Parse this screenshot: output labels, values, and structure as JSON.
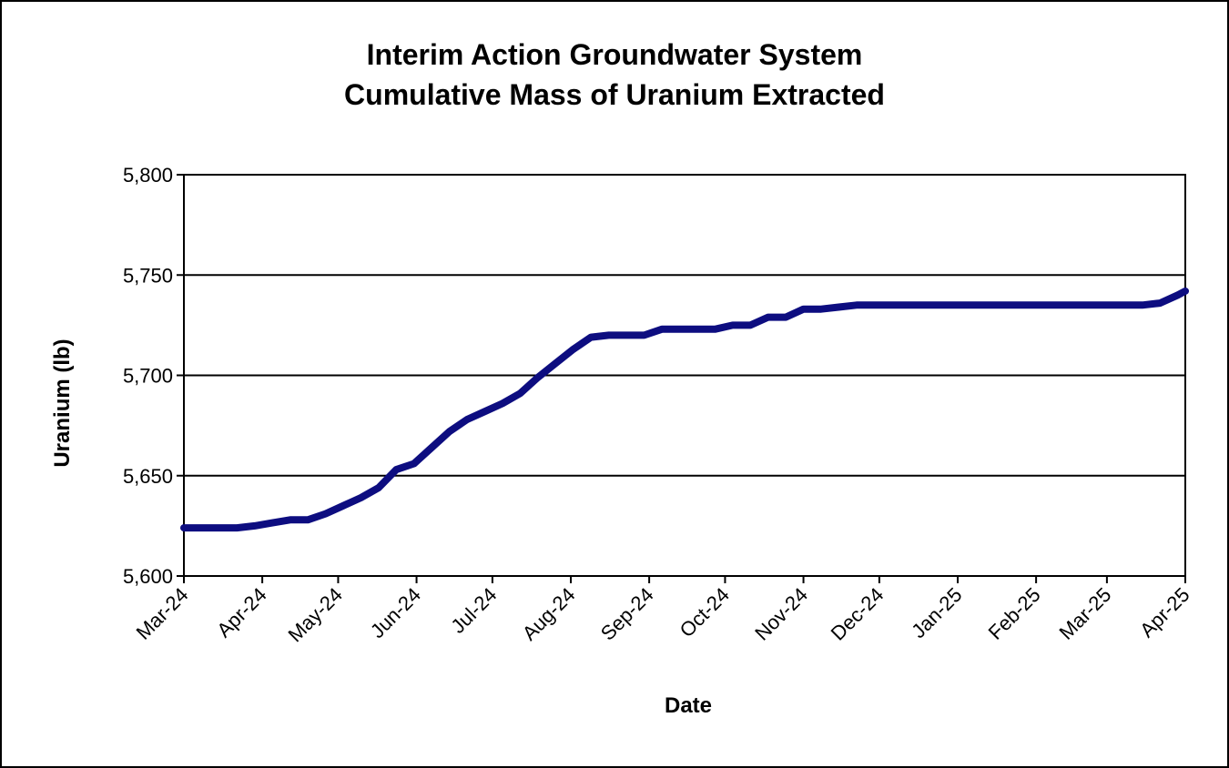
{
  "colors": {
    "line": "#0d0d80",
    "grid": "#000000",
    "background": "#ffffff"
  },
  "chart_data": {
    "type": "line",
    "title_line1": "Interim  Action Groundwater System",
    "title_line2": "Cumulative Mass of Uranium Extracted",
    "xlabel": "Date",
    "ylabel": "Uranium (lb)",
    "ylim": [
      5600,
      5800
    ],
    "yticks": [
      5600,
      5650,
      5700,
      5750,
      5800
    ],
    "ytick_labels": [
      "5,600",
      "5,650",
      "5,700",
      "5,750",
      "5,800"
    ],
    "xlim": [
      "2024-03-01",
      "2025-04-01"
    ],
    "xticks": [
      "2024-03-01",
      "2024-04-01",
      "2024-05-01",
      "2024-06-01",
      "2024-07-01",
      "2024-08-01",
      "2024-09-01",
      "2024-10-01",
      "2024-11-01",
      "2024-12-01",
      "2025-01-01",
      "2025-02-01",
      "2025-03-01",
      "2025-04-01"
    ],
    "xtick_labels": [
      "Mar-24",
      "Apr-24",
      "May-24",
      "Jun-24",
      "Jul-24",
      "Aug-24",
      "Sep-24",
      "Oct-24",
      "Nov-24",
      "Dec-24",
      "Jan-25",
      "Feb-25",
      "Mar-25",
      "Apr-25"
    ],
    "grid": "horizontal",
    "series": [
      {
        "x": [
          "2024-03-01",
          "2024-03-08",
          "2024-03-15",
          "2024-03-22",
          "2024-03-29",
          "2024-04-05",
          "2024-04-12",
          "2024-04-19",
          "2024-04-26",
          "2024-05-03",
          "2024-05-10",
          "2024-05-17",
          "2024-05-24",
          "2024-05-31",
          "2024-06-07",
          "2024-06-14",
          "2024-06-21",
          "2024-06-28",
          "2024-07-05",
          "2024-07-12",
          "2024-07-19",
          "2024-07-26",
          "2024-08-02",
          "2024-08-09",
          "2024-08-16",
          "2024-08-23",
          "2024-08-30",
          "2024-09-06",
          "2024-09-13",
          "2024-09-20",
          "2024-09-27",
          "2024-10-04",
          "2024-10-11",
          "2024-10-18",
          "2024-10-25",
          "2024-11-01",
          "2024-11-08",
          "2024-11-15",
          "2024-11-22",
          "2024-11-29",
          "2024-12-06",
          "2024-12-13",
          "2025-01-01",
          "2025-02-01",
          "2025-03-01",
          "2025-03-15",
          "2025-03-22",
          "2025-03-29",
          "2025-04-01"
        ],
        "y": [
          5624,
          5624,
          5624,
          5624,
          5625,
          5626.5,
          5628,
          5628,
          5631,
          5635,
          5639,
          5644,
          5653,
          5656,
          5664,
          5672,
          5678,
          5682,
          5686,
          5691,
          5699,
          5706,
          5713,
          5719,
          5720,
          5720,
          5720,
          5723,
          5723,
          5723,
          5723,
          5725,
          5725,
          5729,
          5729,
          5733,
          5733,
          5734,
          5735,
          5735,
          5735,
          5735,
          5735,
          5735,
          5735,
          5735,
          5736,
          5740,
          5742
        ]
      }
    ]
  }
}
